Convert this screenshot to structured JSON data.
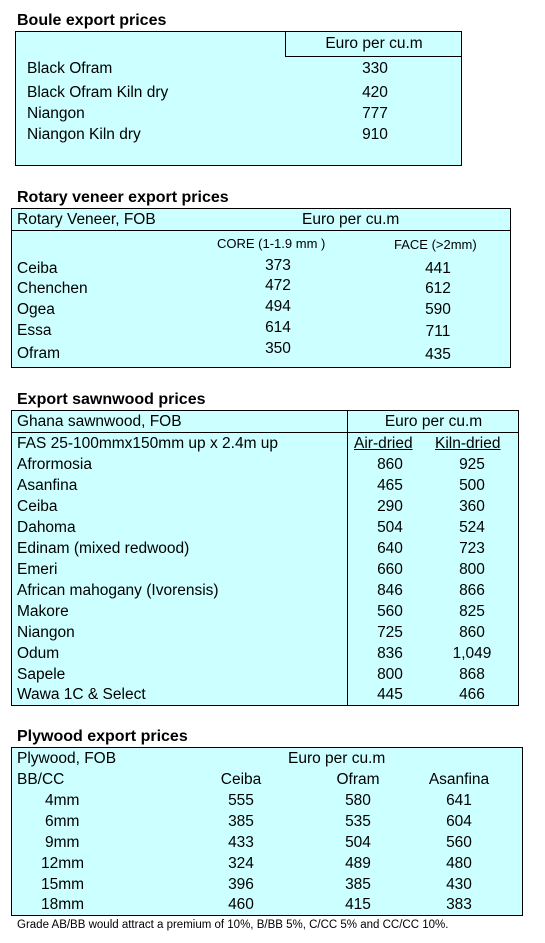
{
  "boule": {
    "title": "Boule export prices",
    "unit": "Euro per cu.m",
    "rows": [
      {
        "name": "Black Ofram",
        "price": "330"
      },
      {
        "name": "Black Ofram  Kiln dry",
        "price": "420"
      },
      {
        "name": "Niangon",
        "price": "777"
      },
      {
        "name": "Niangon Kiln dry",
        "price": "910"
      }
    ]
  },
  "rotary": {
    "title": "Rotary veneer export prices",
    "label": "Rotary Veneer,  FOB",
    "unit": "Euro  per cu.m",
    "core_header": "CORE (1-1.9 mm )",
    "face_header": "FACE (>2mm)",
    "rows": [
      {
        "name": "Ceiba",
        "core": "373",
        "face": "441"
      },
      {
        "name": "Chenchen",
        "core": "472",
        "face": "612"
      },
      {
        "name": "Ogea",
        "core": "494",
        "face": "590"
      },
      {
        "name": "Essa",
        "core": "614",
        "face": "711"
      },
      {
        "name": "Ofram",
        "core": "350",
        "face": "435"
      }
    ]
  },
  "sawn": {
    "title": "Export sawnwood prices",
    "label": "Ghana sawnwood, FOB",
    "unit": "Euro per cu.m",
    "spec": "FAS 25-100mmx150mm up x 2.4m up",
    "air_header": "Air-dried",
    "kiln_header": "Kiln-dried",
    "rows": [
      {
        "name": "Afrormosia",
        "air": "860",
        "kiln": "925"
      },
      {
        "name": "Asanfina",
        "air": "465",
        "kiln": "500"
      },
      {
        "name": "Ceiba",
        "air": "290",
        "kiln": "360"
      },
      {
        "name": "Dahoma",
        "air": "504",
        "kiln": "524"
      },
      {
        "name": "Edinam (mixed redwood)",
        "air": "640",
        "kiln": "723"
      },
      {
        "name": "Emeri",
        "air": "660",
        "kiln": "800"
      },
      {
        "name": "African mahogany (Ivorensis)",
        "air": "846",
        "kiln": "866"
      },
      {
        "name": "Makore",
        "air": "560",
        "kiln": "825"
      },
      {
        "name": "Niangon",
        "air": "725",
        "kiln": "860"
      },
      {
        "name": "Odum",
        "air": "836",
        "kiln": "1,049"
      },
      {
        "name": "Sapele",
        "air": "800",
        "kiln": "868"
      },
      {
        "name": "Wawa 1C & Select",
        "air": "445",
        "kiln": "466"
      }
    ]
  },
  "plywood": {
    "title": "Plywood export prices",
    "label": "Plywood, FOB",
    "unit": "Euro per cu.m",
    "grade": "BB/CC",
    "col1": "Ceiba",
    "col2": "Ofram",
    "col3": "Asanfina",
    "rows": [
      {
        "size": "4mm",
        "ceiba": "555",
        "ofram": "580",
        "asanfina": "641"
      },
      {
        "size": "6mm",
        "ceiba": "385",
        "ofram": "535",
        "asanfina": "604"
      },
      {
        "size": "9mm",
        "ceiba": "433",
        "ofram": "504",
        "asanfina": "560"
      },
      {
        "size": "12mm",
        "ceiba": "324",
        "ofram": "489",
        "asanfina": "480"
      },
      {
        "size": "15mm",
        "ceiba": "396",
        "ofram": "385",
        "asanfina": "430"
      },
      {
        "size": "18mm",
        "ceiba": "460",
        "ofram": "415",
        "asanfina": "383"
      }
    ],
    "note": "Grade AB/BB would attract a premium of 10%, B/BB 5%, C/CC 5% and CC/CC 10%."
  }
}
